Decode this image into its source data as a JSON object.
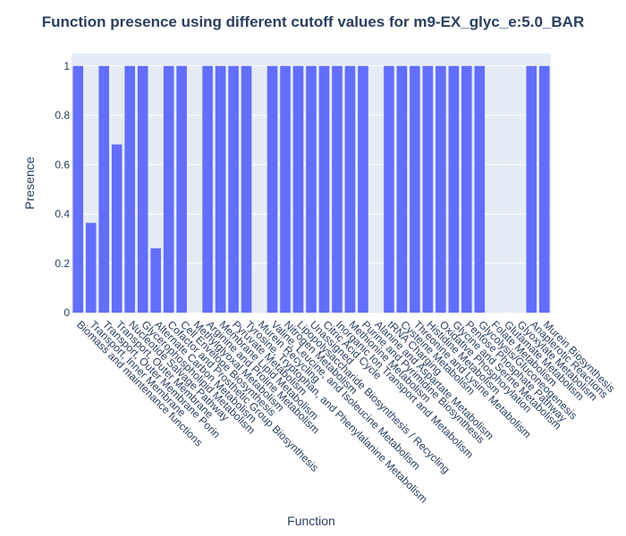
{
  "colors": {
    "bar": "#636efa",
    "plot_bg": "#e5ecf6",
    "grid": "#ffffff",
    "text": "#2a3f5f"
  },
  "chart_data": {
    "type": "bar",
    "title": "Function presence using different cutoff values for m9-EX_glyc_e:5.0_BAR",
    "xlabel": "Function",
    "ylabel": "Presence",
    "ylim": [
      0,
      1.05
    ],
    "yticks": [
      0,
      0.2,
      0.4,
      0.6,
      0.8,
      1
    ],
    "ytick_labels": [
      "0",
      "0.2",
      "0.4",
      "0.6",
      "0.8",
      "1"
    ],
    "grid": true,
    "categories": [
      "Biomass and maintenance functions",
      "Transport, Inner Membrane",
      "Transport, Outer Membrane Porin",
      "Transport, Outer Membrane",
      "Nucleotide Salvage Pathway",
      "Glycerophospholipid Metabolism",
      "Alternate Carbon Metabolism",
      "Cofactor and Prosthetic Group Biosynthesis",
      "Cell Envelope Biosynthesis",
      "Methylglyoxal Metabolism",
      "Arginine and Proline Metabolism",
      "Membrane Lipid Metabolism",
      "Pyruvate Metabolism",
      "Tyrosine, Tryptophan, and Phenylalanine Metabolism",
      "Murein Recycling",
      "Valine, Leucine, and Isoleucine Metabolism",
      "Nitrogen Metabolism",
      "Lipopolysaccharide Biosynthesis / Recycling",
      "Unassigned",
      "Citric Acid Cycle",
      "Inorganic Ion Transport and Metabolism",
      "Methionine Metabolism",
      "Purine and Pyrimidine Biosynthesis",
      "Alanine and Aspartate Metabolism",
      "tRNA Charging",
      "Cysteine Metabolism",
      "Threonine and Lysine Metabolism",
      "Histidine Metabolism",
      "Oxidative Phosphorylation",
      "Glycine and Serine Metabolism",
      "Pentose Phosphate Pathway",
      "Glycolysis/Gluconeogenesis",
      "Folate Metabolism",
      "Glutamate Metabolism",
      "Glyoxylate Metabolism",
      "Anaplerotic Reactions",
      "Murein Biosynthesis"
    ],
    "values": [
      1,
      0.364,
      1,
      0.682,
      1,
      1,
      0.261,
      1,
      1,
      0,
      1,
      1,
      1,
      1,
      0,
      1,
      1,
      1,
      1,
      1,
      1,
      1,
      1,
      0,
      1,
      1,
      1,
      1,
      1,
      1,
      1,
      1,
      0,
      0,
      0,
      1,
      1
    ]
  }
}
